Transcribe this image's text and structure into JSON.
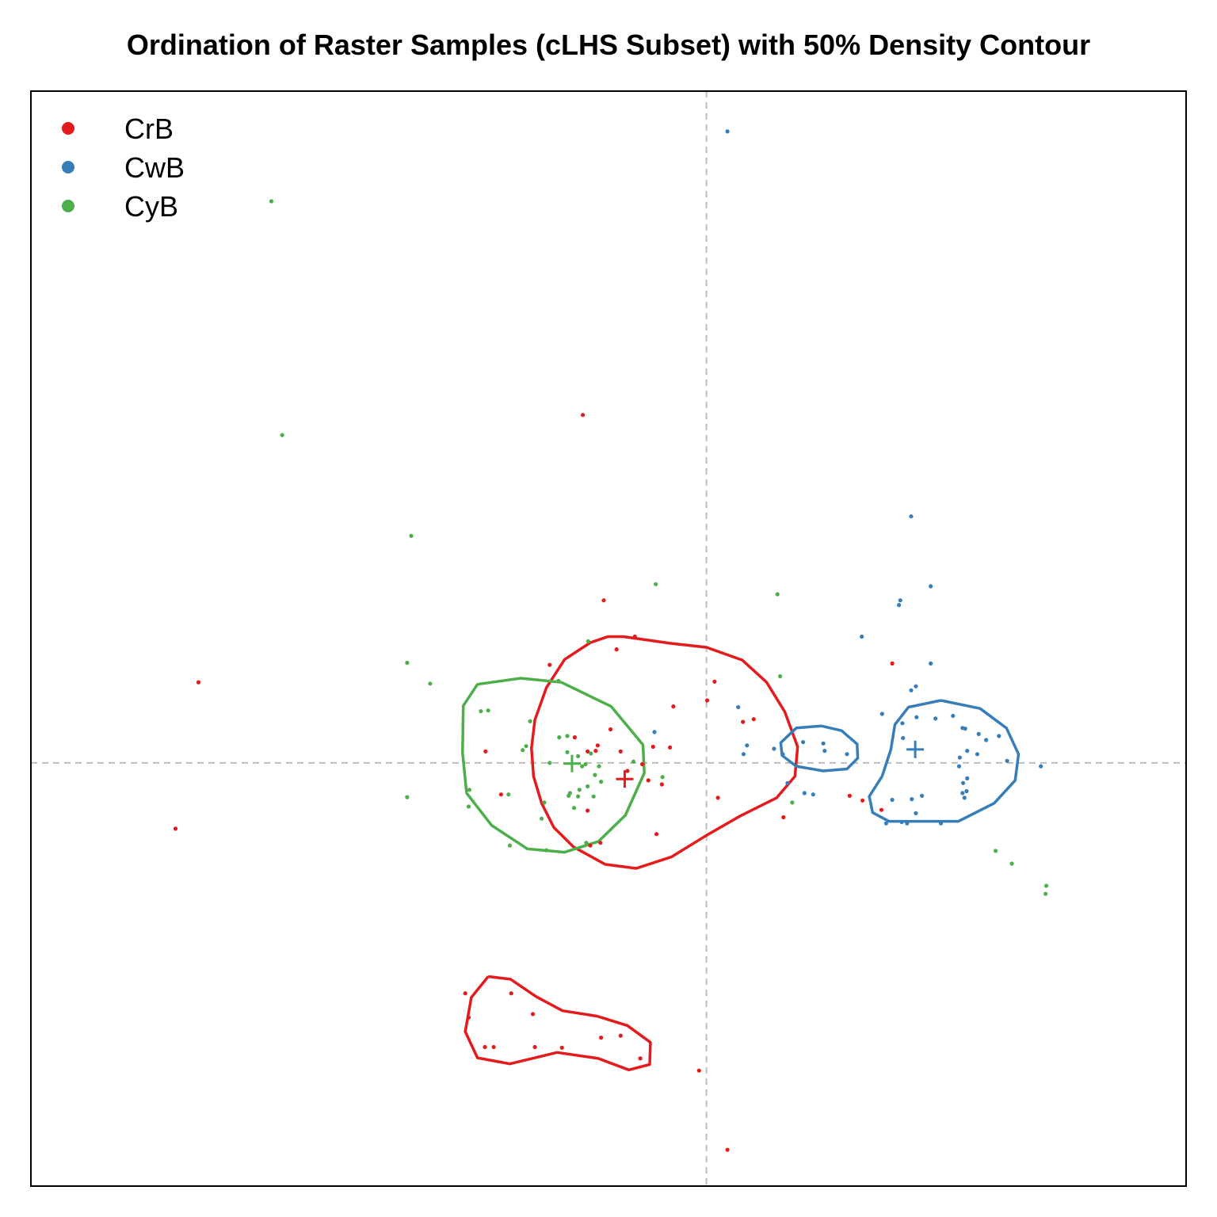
{
  "chart_data": {
    "type": "scatter",
    "title": "Ordination of Raster Samples (cLHS Subset) with 50% Density Contour",
    "xlabel": "",
    "ylabel": "",
    "xlim": [
      -1.0,
      0.71
    ],
    "ylim": [
      -0.63,
      1.0
    ],
    "reference_lines": {
      "x": 0,
      "y": 0,
      "style": "dashed",
      "color": "#bdbdbd"
    },
    "legend_position": "top-left",
    "axes_shown": false,
    "grid": false,
    "series": [
      {
        "name": "CrB",
        "color": "#E41A1C",
        "points": [
          [
            -0.183,
            0.518
          ],
          [
            -0.752,
            0.12
          ],
          [
            -0.786,
            -0.098
          ],
          [
            -0.152,
            0.242
          ],
          [
            -0.106,
            0.188
          ],
          [
            -0.133,
            0.169
          ],
          [
            -0.232,
            0.146
          ],
          [
            0.001,
            0.093
          ],
          [
            0.012,
            0.121
          ],
          [
            -0.049,
            0.084
          ],
          [
            0.07,
            0.065
          ],
          [
            0.054,
            0.061
          ],
          [
            -0.142,
            0.05
          ],
          [
            -0.195,
            0.038
          ],
          [
            -0.161,
            0.026
          ],
          [
            -0.164,
            0.018
          ],
          [
            -0.327,
            0.017
          ],
          [
            -0.127,
            0.017
          ],
          [
            -0.176,
            0.017
          ],
          [
            -0.079,
            0.024
          ],
          [
            -0.054,
            0.023
          ],
          [
            -0.095,
            -0.002
          ],
          [
            -0.117,
            -0.012
          ],
          [
            -0.066,
            -0.032
          ],
          [
            -0.086,
            -0.026
          ],
          [
            -0.304,
            -0.047
          ],
          [
            0.017,
            -0.052
          ],
          [
            -0.176,
            -0.071
          ],
          [
            -0.074,
            -0.106
          ],
          [
            -0.157,
            -0.119
          ],
          [
            -0.172,
            -0.123
          ],
          [
            0.114,
            -0.081
          ],
          [
            0.212,
            -0.049
          ],
          [
            0.231,
            -0.056
          ],
          [
            0.275,
            0.148
          ],
          [
            0.259,
            -0.07
          ],
          [
            -0.357,
            -0.343
          ],
          [
            -0.289,
            -0.343
          ],
          [
            -0.352,
            -0.379
          ],
          [
            -0.257,
            -0.374
          ],
          [
            -0.156,
            -0.409
          ],
          [
            -0.127,
            -0.406
          ],
          [
            -0.214,
            -0.424
          ],
          [
            -0.328,
            -0.423
          ],
          [
            -0.315,
            -0.423
          ],
          [
            -0.254,
            -0.423
          ],
          [
            -0.098,
            -0.44
          ],
          [
            -0.011,
            -0.458
          ],
          [
            0.031,
            -0.576
          ]
        ]
      },
      {
        "name": "CwB",
        "color": "#377EB8",
        "points": [
          [
            0.031,
            0.94
          ],
          [
            0.303,
            0.367
          ],
          [
            0.332,
            0.263
          ],
          [
            0.287,
            0.242
          ],
          [
            0.285,
            0.235
          ],
          [
            0.23,
            0.188
          ],
          [
            0.332,
            0.148
          ],
          [
            0.31,
            0.114
          ],
          [
            0.303,
            0.108
          ],
          [
            0.26,
            0.073
          ],
          [
            0.29,
            0.059
          ],
          [
            0.311,
            0.068
          ],
          [
            0.339,
            0.066
          ],
          [
            0.365,
            0.07
          ],
          [
            0.379,
            0.052
          ],
          [
            0.403,
            0.043
          ],
          [
            0.383,
            0.051
          ],
          [
            0.414,
            0.034
          ],
          [
            0.433,
            0.04
          ],
          [
            0.291,
            0.037
          ],
          [
            0.386,
            0.018
          ],
          [
            0.375,
            0.008
          ],
          [
            0.401,
            0.013
          ],
          [
            0.445,
            0.003
          ],
          [
            0.374,
            -0.005
          ],
          [
            0.495,
            -0.005
          ],
          [
            0.386,
            -0.023
          ],
          [
            0.379,
            -0.045
          ],
          [
            0.38,
            -0.03
          ],
          [
            0.385,
            -0.042
          ],
          [
            0.319,
            -0.049
          ],
          [
            0.304,
            -0.054
          ],
          [
            0.275,
            -0.055
          ],
          [
            0.347,
            -0.09
          ],
          [
            0.297,
            -0.09
          ],
          [
            0.31,
            -0.075
          ],
          [
            0.266,
            -0.09
          ],
          [
            0.289,
            -0.088
          ],
          [
            0.382,
            -0.052
          ],
          [
            0.173,
            0.029
          ],
          [
            0.143,
            0.031
          ],
          [
            0.175,
            0.018
          ],
          [
            0.208,
            0.013
          ],
          [
            0.113,
            0.013
          ],
          [
            0.1,
            0.021
          ],
          [
            0.047,
            0.083
          ],
          [
            -0.077,
            0.046
          ],
          [
            0.055,
            0.013
          ],
          [
            0.06,
            0.026
          ],
          [
            0.145,
            -0.045
          ],
          [
            0.158,
            -0.047
          ],
          [
            0.12,
            -0.03
          ]
        ]
      },
      {
        "name": "CyB",
        "color": "#4DAF4A",
        "points": [
          [
            -0.644,
            0.836
          ],
          [
            -0.628,
            0.488
          ],
          [
            -0.437,
            0.338
          ],
          [
            -0.075,
            0.266
          ],
          [
            0.105,
            0.251
          ],
          [
            -0.443,
            0.149
          ],
          [
            -0.409,
            0.118
          ],
          [
            0.109,
            0.129
          ],
          [
            -0.175,
            0.181
          ],
          [
            -0.219,
            0.122
          ],
          [
            -0.323,
            0.078
          ],
          [
            -0.334,
            0.077
          ],
          [
            -0.261,
            0.062
          ],
          [
            -0.206,
            0.04
          ],
          [
            -0.218,
            0.038
          ],
          [
            -0.267,
            0.025
          ],
          [
            -0.272,
            0.019
          ],
          [
            -0.206,
            0.016
          ],
          [
            -0.171,
            0.014
          ],
          [
            -0.19,
            0.01
          ],
          [
            -0.179,
            -0.002
          ],
          [
            -0.184,
            -0.005
          ],
          [
            -0.159,
            -0.005
          ],
          [
            -0.232,
            0.0
          ],
          [
            -0.108,
            0.002
          ],
          [
            -0.065,
            -0.021
          ],
          [
            -0.165,
            -0.018
          ],
          [
            -0.176,
            -0.035
          ],
          [
            -0.188,
            -0.04
          ],
          [
            -0.202,
            -0.045
          ],
          [
            -0.156,
            -0.028
          ],
          [
            -0.24,
            -0.059
          ],
          [
            -0.204,
            -0.049
          ],
          [
            -0.19,
            -0.05
          ],
          [
            -0.167,
            -0.05
          ],
          [
            -0.196,
            -0.067
          ],
          [
            -0.244,
            -0.083
          ],
          [
            -0.293,
            -0.047
          ],
          [
            -0.351,
            -0.04
          ],
          [
            -0.443,
            -0.051
          ],
          [
            -0.352,
            -0.065
          ],
          [
            -0.178,
            -0.119
          ],
          [
            -0.237,
            -0.13
          ],
          [
            -0.291,
            -0.123
          ],
          [
            0.127,
            -0.059
          ],
          [
            0.428,
            -0.131
          ],
          [
            0.452,
            -0.15
          ],
          [
            0.503,
            -0.183
          ],
          [
            0.502,
            -0.195
          ]
        ]
      }
    ],
    "centroids": [
      {
        "name": "CrB",
        "point": [
          -0.121,
          -0.024
        ]
      },
      {
        "name": "CwB",
        "point": [
          0.309,
          0.02
        ]
      },
      {
        "name": "CyB",
        "point": [
          -0.199,
          -0.001
        ]
      }
    ],
    "contours": [
      {
        "name": "CrB",
        "level": "50%",
        "path": [
          [
            -0.123,
            0.188
          ],
          [
            -0.054,
            0.178
          ],
          [
            0.0,
            0.172
          ],
          [
            0.053,
            0.153
          ],
          [
            0.089,
            0.12
          ],
          [
            0.116,
            0.076
          ],
          [
            0.135,
            0.024
          ],
          [
            0.131,
            -0.02
          ],
          [
            0.104,
            -0.052
          ],
          [
            0.05,
            -0.079
          ],
          [
            0.0,
            -0.108
          ],
          [
            -0.052,
            -0.14
          ],
          [
            -0.104,
            -0.157
          ],
          [
            -0.15,
            -0.151
          ],
          [
            -0.197,
            -0.125
          ],
          [
            -0.226,
            -0.096
          ],
          [
            -0.244,
            -0.06
          ],
          [
            -0.256,
            -0.02
          ],
          [
            -0.259,
            0.022
          ],
          [
            -0.254,
            0.064
          ],
          [
            -0.237,
            0.112
          ],
          [
            -0.21,
            0.154
          ],
          [
            -0.172,
            0.179
          ],
          [
            -0.146,
            0.188
          ],
          [
            -0.123,
            0.188
          ]
        ]
      },
      {
        "name": "CrB",
        "level": "50%",
        "path": [
          [
            -0.323,
            -0.318
          ],
          [
            -0.29,
            -0.322
          ],
          [
            -0.252,
            -0.348
          ],
          [
            -0.213,
            -0.369
          ],
          [
            -0.162,
            -0.377
          ],
          [
            -0.117,
            -0.391
          ],
          [
            -0.083,
            -0.416
          ],
          [
            -0.084,
            -0.449
          ],
          [
            -0.115,
            -0.457
          ],
          [
            -0.16,
            -0.44
          ],
          [
            -0.221,
            -0.431
          ],
          [
            -0.291,
            -0.448
          ],
          [
            -0.339,
            -0.439
          ],
          [
            -0.357,
            -0.4
          ],
          [
            -0.348,
            -0.349
          ],
          [
            -0.323,
            -0.318
          ]
        ]
      },
      {
        "name": "CwB",
        "level": "50%",
        "path": [
          [
            0.347,
            0.093
          ],
          [
            0.405,
            0.081
          ],
          [
            0.444,
            0.052
          ],
          [
            0.462,
            0.013
          ],
          [
            0.457,
            -0.026
          ],
          [
            0.426,
            -0.06
          ],
          [
            0.373,
            -0.087
          ],
          [
            0.358,
            -0.087
          ],
          [
            0.34,
            -0.087
          ],
          [
            0.31,
            -0.087
          ],
          [
            0.27,
            -0.087
          ],
          [
            0.246,
            -0.074
          ],
          [
            0.241,
            -0.05
          ],
          [
            0.26,
            -0.02
          ],
          [
            0.273,
            0.02
          ],
          [
            0.279,
            0.057
          ],
          [
            0.299,
            0.083
          ],
          [
            0.347,
            0.093
          ]
        ]
      },
      {
        "name": "CwB",
        "level": "50%",
        "path": [
          [
            0.17,
            0.055
          ],
          [
            0.2,
            0.048
          ],
          [
            0.223,
            0.028
          ],
          [
            0.224,
            0.007
          ],
          [
            0.208,
            -0.009
          ],
          [
            0.173,
            -0.012
          ],
          [
            0.133,
            -0.005
          ],
          [
            0.112,
            0.011
          ],
          [
            0.11,
            0.03
          ],
          [
            0.133,
            0.052
          ],
          [
            0.17,
            0.055
          ]
        ]
      },
      {
        "name": "CyB",
        "level": "50%",
        "path": [
          [
            -0.215,
            0.12
          ],
          [
            -0.141,
            0.084
          ],
          [
            -0.094,
            0.027
          ],
          [
            -0.092,
            -0.015
          ],
          [
            -0.12,
            -0.078
          ],
          [
            -0.16,
            -0.117
          ],
          [
            -0.21,
            -0.133
          ],
          [
            -0.265,
            -0.128
          ],
          [
            -0.318,
            -0.093
          ],
          [
            -0.355,
            -0.045
          ],
          [
            -0.361,
            0.015
          ],
          [
            -0.36,
            0.085
          ],
          [
            -0.339,
            0.117
          ],
          [
            -0.275,
            0.126
          ],
          [
            -0.215,
            0.12
          ]
        ]
      }
    ]
  }
}
